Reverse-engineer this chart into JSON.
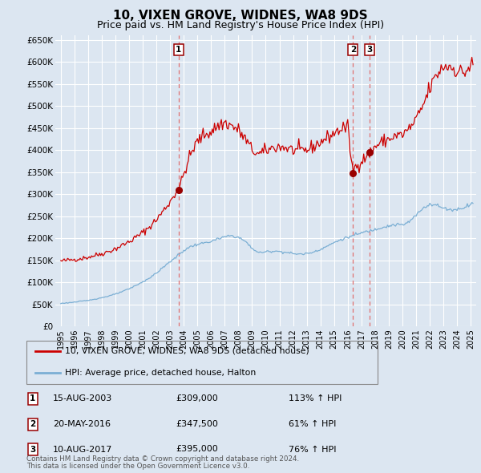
{
  "title": "10, VIXEN GROVE, WIDNES, WA8 9DS",
  "subtitle": "Price paid vs. HM Land Registry's House Price Index (HPI)",
  "title_fontsize": 11,
  "subtitle_fontsize": 9,
  "ylim": [
    0,
    660000
  ],
  "yticks": [
    0,
    50000,
    100000,
    150000,
    200000,
    250000,
    300000,
    350000,
    400000,
    450000,
    500000,
    550000,
    600000,
    650000
  ],
  "ytick_labels": [
    "£0",
    "£50K",
    "£100K",
    "£150K",
    "£200K",
    "£250K",
    "£300K",
    "£350K",
    "£400K",
    "£450K",
    "£500K",
    "£550K",
    "£600K",
    "£650K"
  ],
  "xlim_start": 1994.6,
  "xlim_end": 2025.4,
  "xticks": [
    1995,
    1996,
    1997,
    1998,
    1999,
    2000,
    2001,
    2002,
    2003,
    2004,
    2005,
    2006,
    2007,
    2008,
    2009,
    2010,
    2011,
    2012,
    2013,
    2014,
    2015,
    2016,
    2017,
    2018,
    2019,
    2020,
    2021,
    2022,
    2023,
    2024,
    2025
  ],
  "background_color": "#dce6f1",
  "grid_color": "#ffffff",
  "red_line_color": "#cc0000",
  "blue_line_color": "#7bafd4",
  "vline_color": "#e07070",
  "sale_marker_color": "#990000",
  "sale_points": [
    {
      "num": 1,
      "year": 2003.62,
      "price": 309000,
      "label": "15-AUG-2003",
      "amount": "£309,000",
      "pct": "113% ↑ HPI"
    },
    {
      "num": 2,
      "year": 2016.38,
      "price": 347500,
      "label": "20-MAY-2016",
      "amount": "£347,500",
      "pct": "61% ↑ HPI"
    },
    {
      "num": 3,
      "year": 2017.6,
      "price": 395000,
      "label": "10-AUG-2017",
      "amount": "£395,000",
      "pct": "76% ↑ HPI"
    }
  ],
  "legend_line1": "10, VIXEN GROVE, WIDNES, WA8 9DS (detached house)",
  "legend_line2": "HPI: Average price, detached house, Halton",
  "footer1": "Contains HM Land Registry data © Crown copyright and database right 2024.",
  "footer2": "This data is licensed under the Open Government Licence v3.0."
}
